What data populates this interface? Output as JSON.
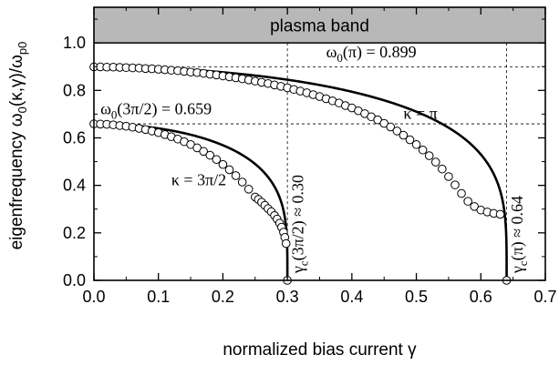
{
  "chart_data": {
    "type": "scatter",
    "title": "",
    "xlabel": "normalized bias current γ",
    "ylabel": "eigenfrequency ω0(κ,γ)/ωp0",
    "xlim": [
      0,
      0.7
    ],
    "ylim": [
      0,
      1.15
    ],
    "x_ticks": [
      "0.0",
      "0.1",
      "0.2",
      "0.3",
      "0.4",
      "0.5",
      "0.6",
      "0.7"
    ],
    "y_ticks": [
      "0.0",
      "0.2",
      "0.4",
      "0.6",
      "0.8",
      "1.0"
    ],
    "grid": false,
    "legend": "none",
    "shaded_band": {
      "label": "plasma band",
      "y_from": 1.0,
      "y_to": 1.15,
      "color": "#b8b8b8"
    },
    "series": [
      {
        "kappa_label": "κ = π",
        "omega0": 0.899,
        "gamma_c": 0.64,
        "marker_x": [
          0.0,
          0.01,
          0.02,
          0.03,
          0.04,
          0.05,
          0.06,
          0.07,
          0.08,
          0.09,
          0.1,
          0.11,
          0.12,
          0.13,
          0.14,
          0.15,
          0.16,
          0.17,
          0.18,
          0.19,
          0.2,
          0.21,
          0.22,
          0.23,
          0.24,
          0.25,
          0.26,
          0.27,
          0.28,
          0.29,
          0.3,
          0.31,
          0.32,
          0.33,
          0.34,
          0.35,
          0.36,
          0.37,
          0.38,
          0.39,
          0.4,
          0.41,
          0.42,
          0.43,
          0.44,
          0.45,
          0.46,
          0.47,
          0.48,
          0.49,
          0.5,
          0.51,
          0.52,
          0.53,
          0.54,
          0.55,
          0.56,
          0.57,
          0.58,
          0.59,
          0.6,
          0.61,
          0.62,
          0.63,
          0.64
        ],
        "marker_y": [
          0.899,
          0.899,
          0.898,
          0.898,
          0.897,
          0.896,
          0.895,
          0.894,
          0.892,
          0.891,
          0.889,
          0.887,
          0.885,
          0.883,
          0.88,
          0.877,
          0.875,
          0.872,
          0.868,
          0.865,
          0.861,
          0.857,
          0.853,
          0.849,
          0.844,
          0.839,
          0.834,
          0.829,
          0.823,
          0.817,
          0.811,
          0.804,
          0.797,
          0.79,
          0.782,
          0.774,
          0.765,
          0.756,
          0.747,
          0.736,
          0.726,
          0.714,
          0.702,
          0.689,
          0.676,
          0.661,
          0.646,
          0.629,
          0.611,
          0.592,
          0.572,
          0.549,
          0.525,
          0.498,
          0.469,
          0.437,
          0.402,
          0.366,
          0.333,
          0.311,
          0.296,
          0.288,
          0.282,
          0.278,
          0.0
        ]
      },
      {
        "kappa_label": "κ = 3π/2",
        "omega0": 0.659,
        "gamma_c": 0.3,
        "marker_x": [
          0.0,
          0.01,
          0.02,
          0.03,
          0.04,
          0.05,
          0.06,
          0.07,
          0.08,
          0.09,
          0.1,
          0.11,
          0.12,
          0.13,
          0.14,
          0.15,
          0.16,
          0.17,
          0.18,
          0.19,
          0.2,
          0.21,
          0.22,
          0.23,
          0.24,
          0.25,
          0.255,
          0.26,
          0.265,
          0.27,
          0.275,
          0.28,
          0.284,
          0.288,
          0.291,
          0.294,
          0.296,
          0.298,
          0.3
        ],
        "marker_y": [
          0.659,
          0.658,
          0.657,
          0.655,
          0.652,
          0.649,
          0.645,
          0.64,
          0.635,
          0.629,
          0.622,
          0.614,
          0.605,
          0.595,
          0.584,
          0.572,
          0.558,
          0.543,
          0.527,
          0.509,
          0.488,
          0.466,
          0.441,
          0.414,
          0.384,
          0.351,
          0.341,
          0.329,
          0.316,
          0.302,
          0.289,
          0.273,
          0.258,
          0.241,
          0.224,
          0.203,
          0.181,
          0.155,
          0.0
        ]
      }
    ],
    "annotations": [
      {
        "text": "ω0(π) = 0.899",
        "x": 0.36,
        "y": 0.94
      },
      {
        "text": "ω0(3π/2) = 0.659",
        "x": 0.01,
        "y": 0.7
      },
      {
        "text": "κ = π",
        "x": 0.48,
        "y": 0.68
      },
      {
        "text": "κ = 3π/2",
        "x": 0.12,
        "y": 0.4
      },
      {
        "text": "γc(3π/2) ≈ 0.30",
        "x": 0.305,
        "y": 0.03,
        "rotated": true
      },
      {
        "text": "γc(π) ≈ 0.64",
        "x": 0.645,
        "y": 0.03,
        "rotated": true
      }
    ]
  }
}
